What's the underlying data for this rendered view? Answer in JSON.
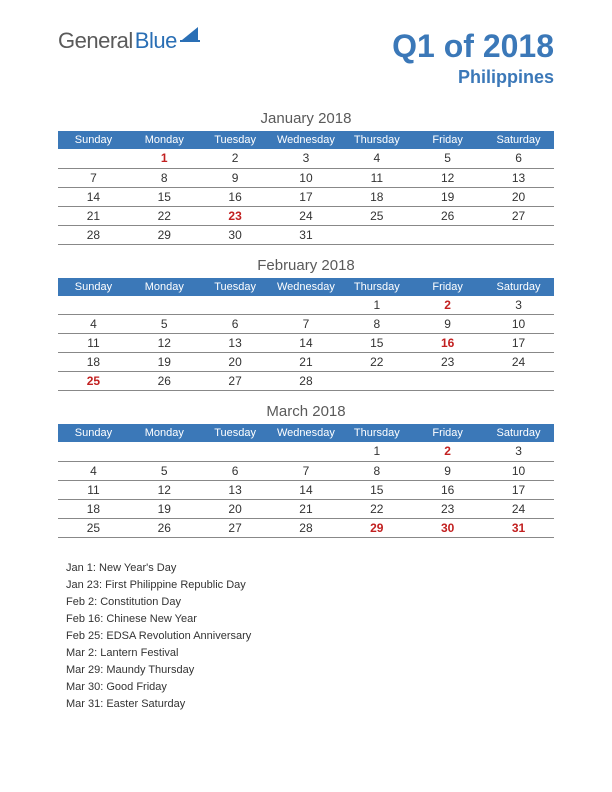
{
  "colors": {
    "primary_blue": "#3b78b8",
    "holiday_red": "#c22020",
    "text_gray": "#5a5a5a",
    "border": "#888888",
    "background": "#ffffff"
  },
  "logo": {
    "part1": "General",
    "part2": "Blue"
  },
  "title": "Q1 of 2018",
  "country": "Philippines",
  "day_headers": [
    "Sunday",
    "Monday",
    "Tuesday",
    "Wednesday",
    "Thursday",
    "Friday",
    "Saturday"
  ],
  "months": [
    {
      "title": "January 2018",
      "weeks": [
        [
          {
            "d": ""
          },
          {
            "d": "1",
            "h": true
          },
          {
            "d": "2"
          },
          {
            "d": "3"
          },
          {
            "d": "4"
          },
          {
            "d": "5"
          },
          {
            "d": "6"
          }
        ],
        [
          {
            "d": "7"
          },
          {
            "d": "8"
          },
          {
            "d": "9"
          },
          {
            "d": "10"
          },
          {
            "d": "11"
          },
          {
            "d": "12"
          },
          {
            "d": "13"
          }
        ],
        [
          {
            "d": "14"
          },
          {
            "d": "15"
          },
          {
            "d": "16"
          },
          {
            "d": "17"
          },
          {
            "d": "18"
          },
          {
            "d": "19"
          },
          {
            "d": "20"
          }
        ],
        [
          {
            "d": "21"
          },
          {
            "d": "22"
          },
          {
            "d": "23",
            "h": true
          },
          {
            "d": "24"
          },
          {
            "d": "25"
          },
          {
            "d": "26"
          },
          {
            "d": "27"
          }
        ],
        [
          {
            "d": "28"
          },
          {
            "d": "29"
          },
          {
            "d": "30"
          },
          {
            "d": "31"
          },
          {
            "d": ""
          },
          {
            "d": ""
          },
          {
            "d": ""
          }
        ]
      ]
    },
    {
      "title": "February 2018",
      "weeks": [
        [
          {
            "d": ""
          },
          {
            "d": ""
          },
          {
            "d": ""
          },
          {
            "d": ""
          },
          {
            "d": "1"
          },
          {
            "d": "2",
            "h": true
          },
          {
            "d": "3"
          }
        ],
        [
          {
            "d": "4"
          },
          {
            "d": "5"
          },
          {
            "d": "6"
          },
          {
            "d": "7"
          },
          {
            "d": "8"
          },
          {
            "d": "9"
          },
          {
            "d": "10"
          }
        ],
        [
          {
            "d": "11"
          },
          {
            "d": "12"
          },
          {
            "d": "13"
          },
          {
            "d": "14"
          },
          {
            "d": "15"
          },
          {
            "d": "16",
            "h": true
          },
          {
            "d": "17"
          }
        ],
        [
          {
            "d": "18"
          },
          {
            "d": "19"
          },
          {
            "d": "20"
          },
          {
            "d": "21"
          },
          {
            "d": "22"
          },
          {
            "d": "23"
          },
          {
            "d": "24"
          }
        ],
        [
          {
            "d": "25",
            "h": true
          },
          {
            "d": "26"
          },
          {
            "d": "27"
          },
          {
            "d": "28"
          },
          {
            "d": ""
          },
          {
            "d": ""
          },
          {
            "d": ""
          }
        ]
      ]
    },
    {
      "title": "March 2018",
      "weeks": [
        [
          {
            "d": ""
          },
          {
            "d": ""
          },
          {
            "d": ""
          },
          {
            "d": ""
          },
          {
            "d": "1"
          },
          {
            "d": "2",
            "h": true
          },
          {
            "d": "3"
          }
        ],
        [
          {
            "d": "4"
          },
          {
            "d": "5"
          },
          {
            "d": "6"
          },
          {
            "d": "7"
          },
          {
            "d": "8"
          },
          {
            "d": "9"
          },
          {
            "d": "10"
          }
        ],
        [
          {
            "d": "11"
          },
          {
            "d": "12"
          },
          {
            "d": "13"
          },
          {
            "d": "14"
          },
          {
            "d": "15"
          },
          {
            "d": "16"
          },
          {
            "d": "17"
          }
        ],
        [
          {
            "d": "18"
          },
          {
            "d": "19"
          },
          {
            "d": "20"
          },
          {
            "d": "21"
          },
          {
            "d": "22"
          },
          {
            "d": "23"
          },
          {
            "d": "24"
          }
        ],
        [
          {
            "d": "25"
          },
          {
            "d": "26"
          },
          {
            "d": "27"
          },
          {
            "d": "28"
          },
          {
            "d": "29",
            "h": true
          },
          {
            "d": "30",
            "h": true
          },
          {
            "d": "31",
            "h": true
          }
        ]
      ]
    }
  ],
  "holidays": [
    "Jan 1: New Year's Day",
    "Jan 23: First Philippine Republic Day",
    "Feb 2: Constitution Day",
    "Feb 16: Chinese New Year",
    "Feb 25: EDSA Revolution Anniversary",
    "Mar 2: Lantern Festival",
    "Mar 29: Maundy Thursday",
    "Mar 30: Good Friday",
    "Mar 31: Easter Saturday"
  ]
}
